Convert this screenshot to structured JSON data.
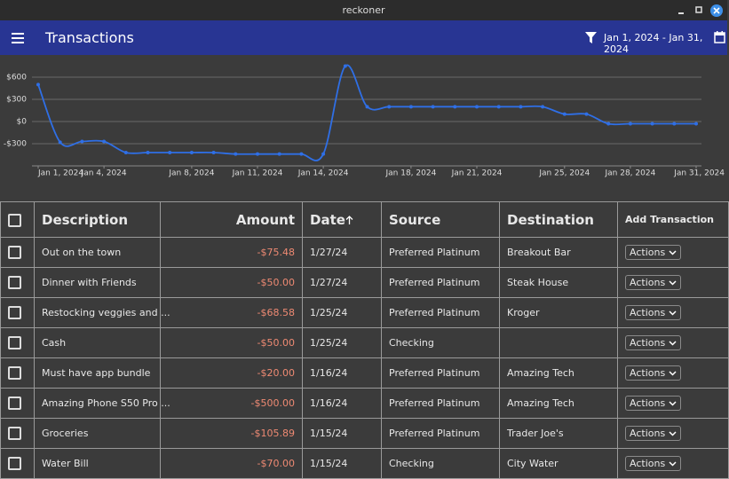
{
  "window": {
    "title": "reckoner"
  },
  "app_bar": {
    "title": "Transactions",
    "date_range": "Jan 1, 2024 - Jan 31, 2024"
  },
  "chart_data": {
    "type": "line",
    "x": [
      "2024-01-01",
      "2024-01-02",
      "2024-01-03",
      "2024-01-04",
      "2024-01-05",
      "2024-01-06",
      "2024-01-07",
      "2024-01-08",
      "2024-01-09",
      "2024-01-10",
      "2024-01-11",
      "2024-01-12",
      "2024-01-13",
      "2024-01-14",
      "2024-01-15",
      "2024-01-16",
      "2024-01-17",
      "2024-01-18",
      "2024-01-19",
      "2024-01-20",
      "2024-01-21",
      "2024-01-22",
      "2024-01-23",
      "2024-01-24",
      "2024-01-25",
      "2024-01-26",
      "2024-01-27",
      "2024-01-28",
      "2024-01-29",
      "2024-01-30",
      "2024-01-31"
    ],
    "values": [
      500,
      -280,
      -270,
      -270,
      -420,
      -420,
      -420,
      -420,
      -420,
      -440,
      -440,
      -440,
      -440,
      -440,
      750,
      200,
      200,
      200,
      200,
      200,
      200,
      200,
      200,
      200,
      100,
      100,
      -30,
      -30,
      -30,
      -30,
      -30
    ],
    "color": "#2f6fe6",
    "xlim": [
      "2024-01-01",
      "2024-01-31"
    ],
    "xticks": [
      {
        "value": "2024-01-01",
        "label": "Jan 1, 2024"
      },
      {
        "value": "2024-01-04",
        "label": "Jan 4, 2024"
      },
      {
        "value": "2024-01-08",
        "label": "Jan 8, 2024"
      },
      {
        "value": "2024-01-11",
        "label": "Jan 11, 2024"
      },
      {
        "value": "2024-01-14",
        "label": "Jan 14, 2024"
      },
      {
        "value": "2024-01-18",
        "label": "Jan 18, 2024"
      },
      {
        "value": "2024-01-21",
        "label": "Jan 21, 2024"
      },
      {
        "value": "2024-01-25",
        "label": "Jan 25, 2024"
      },
      {
        "value": "2024-01-28",
        "label": "Jan 28, 2024"
      },
      {
        "value": "2024-01-31",
        "label": "Jan 31, 2024"
      }
    ],
    "ylim": [
      -600,
      750
    ],
    "yticks": [
      {
        "value": -300,
        "label": "-$300"
      },
      {
        "value": 0,
        "label": "$0"
      },
      {
        "value": 300,
        "label": "$300"
      },
      {
        "value": 600,
        "label": "$600"
      }
    ],
    "grid": true
  },
  "table": {
    "columns": [
      "Description",
      "Amount",
      "Date",
      "Source",
      "Destination",
      "Add Transaction"
    ],
    "rows": [
      [
        "Out on the town",
        "-$75.48",
        "1/27/24",
        "Preferred Platinum",
        "Breakout Bar",
        "Actions"
      ],
      [
        "Dinner with Friends",
        "-$50.00",
        "1/27/24",
        "Preferred Platinum",
        "Steak House",
        "Actions"
      ],
      [
        "Restocking veggies and ...",
        "-$68.58",
        "1/25/24",
        "Preferred Platinum",
        "Kroger",
        "Actions"
      ],
      [
        "Cash",
        "-$50.00",
        "1/25/24",
        "Checking",
        null,
        "Actions"
      ],
      [
        "Must have app bundle",
        "-$20.00",
        "1/16/24",
        "Preferred Platinum",
        "Amazing Tech",
        "Actions"
      ],
      [
        "Amazing Phone S50 Pro ...",
        "-$500.00",
        "1/16/24",
        "Preferred Platinum",
        "Amazing Tech",
        "Actions"
      ],
      [
        "Groceries",
        "-$105.89",
        "1/15/24",
        "Preferred Platinum",
        "Trader Joe's",
        "Actions"
      ],
      [
        "Water Bill",
        "-$70.00",
        "1/15/24",
        "Checking",
        "City Water",
        "Actions"
      ]
    ]
  }
}
